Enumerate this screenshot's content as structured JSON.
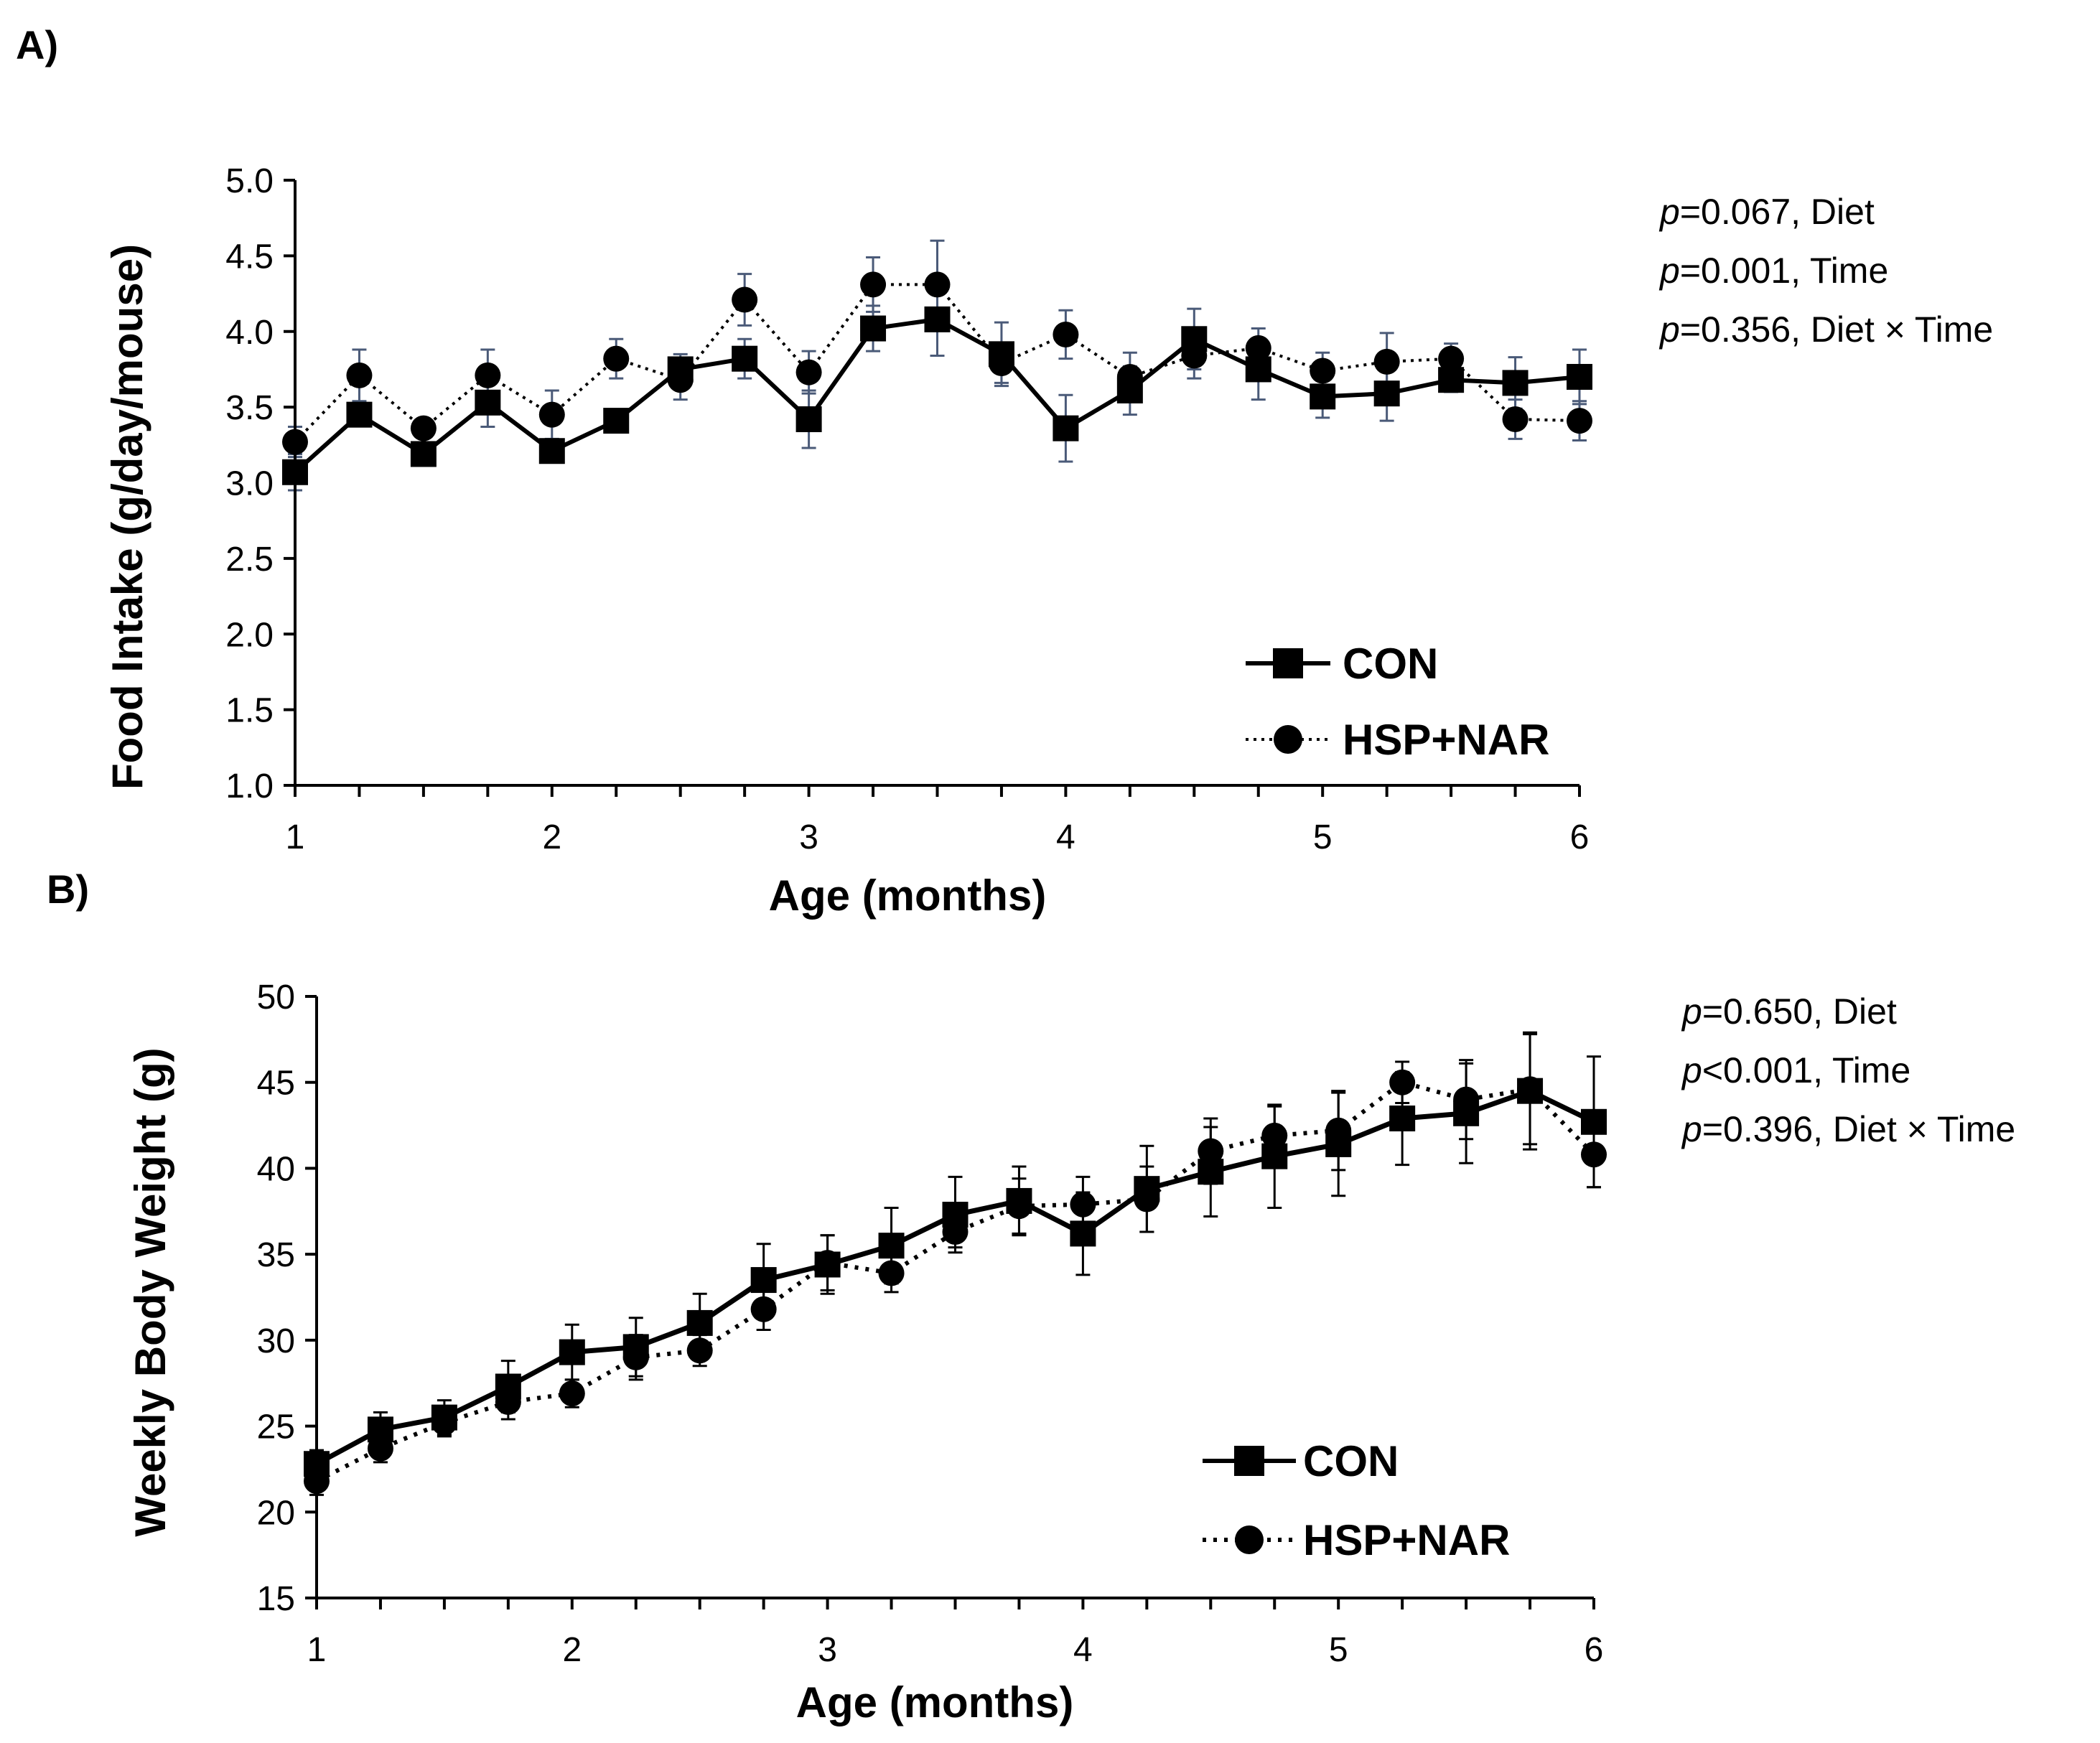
{
  "chart_data": [
    {
      "panel": "A)",
      "type": "line",
      "xlabel": "Age (months)",
      "ylabel": "Food Intake (g/day/mouse)",
      "ylim": [
        1.0,
        5.0
      ],
      "xlim": [
        1,
        6
      ],
      "yticks": [
        "1.0",
        "1.5",
        "2.0",
        "2.5",
        "3.0",
        "3.5",
        "4.0",
        "4.5",
        "5.0"
      ],
      "yticks_values": [
        1.0,
        1.5,
        2.0,
        2.5,
        3.0,
        3.5,
        4.0,
        4.5,
        5.0
      ],
      "xticks": [
        "1",
        "2",
        "3",
        "4",
        "5",
        "6"
      ],
      "x": [
        1,
        1.25,
        1.5,
        1.75,
        2,
        2.25,
        2.5,
        2.75,
        3,
        3.25,
        3.5,
        3.75,
        4,
        4.25,
        4.5,
        4.75,
        5,
        5.25,
        5.5,
        5.75,
        6
      ],
      "series": [
        {
          "name": "CON",
          "marker": "square",
          "line": "solid",
          "values": [
            3.07,
            3.45,
            3.19,
            3.53,
            3.21,
            3.41,
            3.75,
            3.82,
            3.42,
            4.02,
            4.08,
            3.85,
            3.36,
            3.61,
            3.95,
            3.75,
            3.57,
            3.59,
            3.68,
            3.66,
            3.7
          ],
          "errors": [
            0.12,
            0.07,
            0.06,
            0.16,
            0.06,
            0.05,
            0.1,
            0.13,
            0.19,
            0.15,
            0.24,
            0.21,
            0.22,
            0.16,
            0.2,
            0.2,
            0.14,
            0.18,
            0.08,
            0.17,
            0.18
          ]
        },
        {
          "name": "HSP+NAR",
          "marker": "circle",
          "line": "dotted",
          "values": [
            3.27,
            3.71,
            3.36,
            3.71,
            3.45,
            3.82,
            3.68,
            4.21,
            3.73,
            4.31,
            4.31,
            3.79,
            3.98,
            3.7,
            3.84,
            3.89,
            3.74,
            3.8,
            3.82,
            3.42,
            3.41
          ],
          "errors": [
            0.1,
            0.17,
            0.05,
            0.17,
            0.16,
            0.13,
            0.13,
            0.17,
            0.14,
            0.18,
            0.29,
            0.13,
            0.16,
            0.16,
            0.15,
            0.13,
            0.12,
            0.19,
            0.1,
            0.13,
            0.13
          ]
        }
      ],
      "stats": [
        {
          "p": "p",
          "value": "=0.067, Diet"
        },
        {
          "p": "p",
          "value": "=0.001, Time"
        },
        {
          "p": "p",
          "value": "=0.356, Diet × Time"
        }
      ],
      "legend_position": "bottom-right"
    },
    {
      "panel": "B)",
      "type": "line",
      "xlabel": "Age (months)",
      "ylabel": "Weekly Body Weight (g)",
      "ylim": [
        15,
        50
      ],
      "xlim": [
        1,
        6
      ],
      "yticks": [
        "15",
        "20",
        "25",
        "30",
        "35",
        "40",
        "45",
        "50"
      ],
      "yticks_values": [
        15,
        20,
        25,
        30,
        35,
        40,
        45,
        50
      ],
      "xticks": [
        "1",
        "2",
        "3",
        "4",
        "5",
        "6"
      ],
      "x": [
        1,
        1.25,
        1.5,
        1.75,
        2,
        2.25,
        2.5,
        2.75,
        3,
        3.25,
        3.5,
        3.75,
        4,
        4.25,
        4.5,
        4.75,
        5,
        5.25,
        5.5,
        5.75,
        6
      ],
      "series": [
        {
          "name": "CON",
          "marker": "square",
          "line": "solid",
          "values": [
            22.8,
            24.8,
            25.5,
            27.3,
            29.3,
            29.6,
            31.0,
            33.5,
            34.4,
            35.5,
            37.3,
            38.1,
            36.2,
            38.8,
            39.8,
            40.7,
            41.4,
            42.9,
            43.2,
            44.5,
            42.7
          ],
          "errors": [
            0.8,
            1.0,
            1.0,
            1.5,
            1.6,
            1.7,
            1.7,
            2.1,
            1.7,
            2.2,
            2.2,
            2.0,
            2.4,
            2.5,
            2.6,
            3.0,
            3.0,
            2.7,
            2.9,
            3.4,
            3.8
          ]
        },
        {
          "name": "HSP+NAR",
          "marker": "circle",
          "line": "dotted",
          "values": [
            21.8,
            23.7,
            25.2,
            26.4,
            26.9,
            29.0,
            29.4,
            31.8,
            34.5,
            33.9,
            36.3,
            37.8,
            37.9,
            38.2,
            41.0,
            41.9,
            42.2,
            45.0,
            44.0,
            44.6,
            40.8
          ],
          "errors": [
            0.8,
            0.8,
            0.8,
            1.0,
            0.8,
            1.3,
            0.9,
            1.2,
            1.6,
            1.1,
            0.9,
            1.6,
            1.6,
            1.9,
            1.9,
            1.7,
            2.3,
            1.2,
            2.3,
            3.2,
            1.9
          ]
        }
      ],
      "stats": [
        {
          "p": "p",
          "value": "=0.650, Diet"
        },
        {
          "p": "p",
          "value": "<0.001, Time"
        },
        {
          "p": "p",
          "value": "=0.396, Diet × Time"
        }
      ],
      "legend_position": "bottom-right"
    }
  ]
}
